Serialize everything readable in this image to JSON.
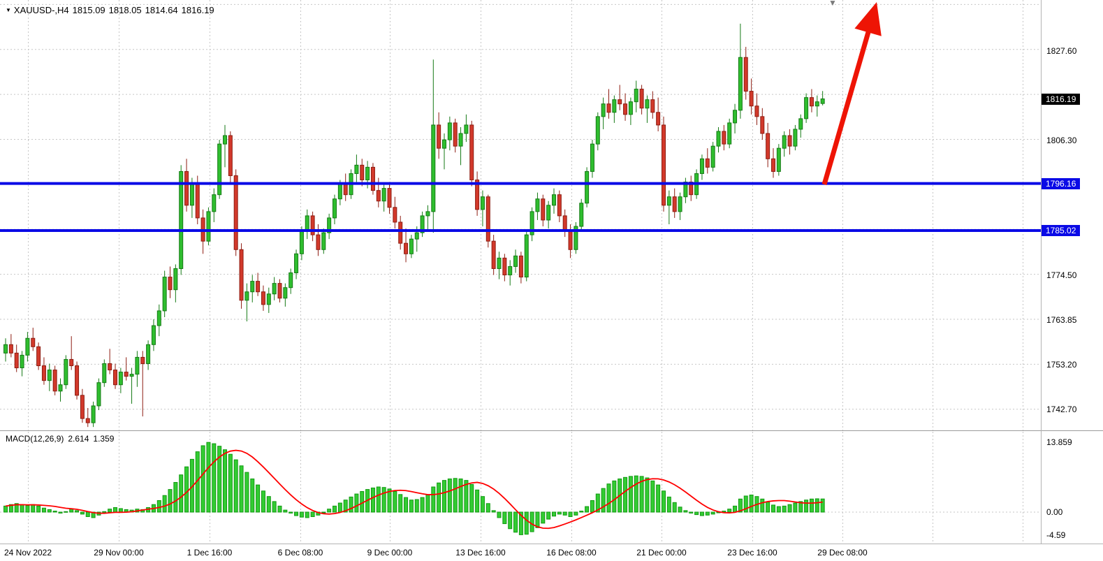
{
  "header": {
    "symbol_period": "XAUUSD-,H4",
    "open": "1815.09",
    "high": "1818.05",
    "low": "1814.64",
    "close": "1816.19"
  },
  "icons": {
    "symbol_dropdown": "▼",
    "shift_marker": "▼"
  },
  "indicator_panel": {
    "label": "MACD(12,26,9)",
    "macd_value": "2.614",
    "signal_value": "1.359",
    "axis_labels": [
      {
        "text": "13.859",
        "value": 13.859
      },
      {
        "text": "0.00",
        "value": 0
      },
      {
        "text": "-4.59",
        "value": -4.59
      }
    ]
  },
  "price_axis": {
    "ticks": [
      {
        "text": "1827.60",
        "value": 1827.6
      },
      {
        "text": "1806.30",
        "value": 1806.3
      },
      {
        "text": "1774.50",
        "value": 1774.5
      },
      {
        "text": "1763.85",
        "value": 1763.85
      },
      {
        "text": "1753.20",
        "value": 1753.2
      },
      {
        "text": "1742.70",
        "value": 1742.7
      }
    ],
    "current_price_badge": {
      "text": "1816.19",
      "value": 1816.19
    },
    "level_badges": [
      {
        "text": "1796.16",
        "value": 1796.16
      },
      {
        "text": "1785.02",
        "value": 1785.02
      }
    ]
  },
  "colors": {
    "bull": "#2fbe2f",
    "bull_stroke": "#157a15",
    "bear": "#d2392b",
    "bear_stroke": "#8e1d12",
    "hist": "#33cc33",
    "hist_stroke": "#119911",
    "signal": "#ff0000",
    "level": "#0a0ae6",
    "arrow": "#ee1405",
    "grid": "#c6c6c6",
    "separator": "#9a9a9a",
    "badge_current_bg": "#000000",
    "badge_level_bg": "#0a0ae6",
    "badge_text": "#ffffff",
    "axis_text": "#000000"
  },
  "chart_data": {
    "type": "candlestick",
    "symbol": "XAUUSD-",
    "timeframe": "H4",
    "title": "XAUUSD-,H4 1815.09 1818.05 1814.64 1816.19",
    "x_tick_labels": [
      "24 Nov 2022",
      "29 Nov 00:00",
      "1 Dec 16:00",
      "6 Dec 08:00",
      "9 Dec 00:00",
      "13 Dec 16:00",
      "16 Dec 08:00",
      "21 Dec 00:00",
      "23 Dec 16:00",
      "29 Dec 08:00"
    ],
    "price_axis_range": {
      "max": 1839.6,
      "min": 1737.7
    },
    "grid": {
      "base": 1742.7,
      "horizontal_step": 10.65
    },
    "current_price": 1816.19,
    "levels": [
      {
        "price": 1796.16,
        "label": "1796.16"
      },
      {
        "price": 1785.02,
        "label": "1785.02"
      }
    ],
    "annotations": [
      {
        "type": "arrow-up",
        "meaning": "bullish projection from 1796.16 support"
      }
    ],
    "candles": [
      [
        1756.0,
        1759.5,
        1754.0,
        1758.0
      ],
      [
        1758.0,
        1760.5,
        1755.0,
        1756.0
      ],
      [
        1756.0,
        1758.0,
        1751.5,
        1752.5
      ],
      [
        1752.5,
        1756.5,
        1750.5,
        1755.5
      ],
      [
        1755.5,
        1761.0,
        1754.0,
        1759.5
      ],
      [
        1759.5,
        1762.0,
        1756.5,
        1757.5
      ],
      [
        1757.5,
        1758.5,
        1752.0,
        1753.0
      ],
      [
        1753.0,
        1755.0,
        1748.5,
        1749.5
      ],
      [
        1749.5,
        1753.5,
        1747.0,
        1752.0
      ],
      [
        1752.0,
        1753.0,
        1746.0,
        1747.0
      ],
      [
        1747.0,
        1750.0,
        1744.5,
        1748.5
      ],
      [
        1748.5,
        1755.5,
        1747.5,
        1754.5
      ],
      [
        1754.5,
        1760.0,
        1752.0,
        1753.0
      ],
      [
        1753.0,
        1754.0,
        1745.0,
        1746.0
      ],
      [
        1746.0,
        1747.5,
        1739.5,
        1740.5
      ],
      [
        1740.5,
        1743.0,
        1738.5,
        1739.5
      ],
      [
        1739.5,
        1744.5,
        1738.5,
        1743.5
      ],
      [
        1743.5,
        1750.0,
        1742.5,
        1749.0
      ],
      [
        1749.0,
        1754.5,
        1748.0,
        1753.5
      ],
      [
        1753.5,
        1757.0,
        1751.0,
        1752.0
      ],
      [
        1752.0,
        1753.5,
        1747.5,
        1748.5
      ],
      [
        1748.5,
        1752.5,
        1746.5,
        1751.5
      ],
      [
        1751.5,
        1755.0,
        1749.5,
        1750.5
      ],
      [
        1750.5,
        1752.5,
        1744.0,
        1751.0
      ],
      [
        1751.0,
        1756.5,
        1748.0,
        1755.0
      ],
      [
        1755.0,
        1756.5,
        1741.0,
        1753.5
      ],
      [
        1753.5,
        1759.0,
        1752.0,
        1758.0
      ],
      [
        1758.0,
        1764.0,
        1756.5,
        1762.5
      ],
      [
        1762.5,
        1767.5,
        1760.0,
        1766.0
      ],
      [
        1766.0,
        1775.5,
        1764.5,
        1774.0
      ],
      [
        1774.0,
        1776.5,
        1769.0,
        1771.0
      ],
      [
        1771.0,
        1777.0,
        1768.0,
        1776.0
      ],
      [
        1776.0,
        1800.5,
        1774.5,
        1799.0
      ],
      [
        1799.0,
        1802.0,
        1789.5,
        1791.0
      ],
      [
        1791.0,
        1797.5,
        1788.0,
        1796.0
      ],
      [
        1796.0,
        1798.0,
        1786.5,
        1788.0
      ],
      [
        1788.0,
        1790.0,
        1779.5,
        1782.5
      ],
      [
        1782.5,
        1790.5,
        1781.5,
        1789.5
      ],
      [
        1789.5,
        1795.0,
        1787.0,
        1793.5
      ],
      [
        1793.5,
        1806.5,
        1792.5,
        1805.5
      ],
      [
        1805.5,
        1810.0,
        1800.0,
        1807.5
      ],
      [
        1807.5,
        1808.5,
        1796.0,
        1798.0
      ],
      [
        1798.0,
        1799.5,
        1779.0,
        1780.5
      ],
      [
        1780.5,
        1782.0,
        1766.5,
        1768.5
      ],
      [
        1768.5,
        1772.5,
        1763.5,
        1770.5
      ],
      [
        1770.5,
        1774.5,
        1768.0,
        1773.0
      ],
      [
        1773.0,
        1775.0,
        1769.5,
        1770.5
      ],
      [
        1770.5,
        1772.0,
        1766.0,
        1767.5
      ],
      [
        1767.5,
        1771.5,
        1765.5,
        1770.0
      ],
      [
        1770.0,
        1774.0,
        1768.5,
        1772.5
      ],
      [
        1772.5,
        1773.5,
        1768.0,
        1769.0
      ],
      [
        1769.0,
        1772.5,
        1767.0,
        1771.5
      ],
      [
        1771.5,
        1776.0,
        1770.0,
        1775.0
      ],
      [
        1775.0,
        1780.5,
        1773.5,
        1779.5
      ],
      [
        1779.5,
        1786.0,
        1778.0,
        1785.0
      ],
      [
        1785.0,
        1790.0,
        1783.0,
        1788.5
      ],
      [
        1788.5,
        1789.5,
        1782.5,
        1784.0
      ],
      [
        1784.0,
        1786.5,
        1779.0,
        1780.5
      ],
      [
        1780.5,
        1785.5,
        1779.5,
        1784.5
      ],
      [
        1784.5,
        1789.0,
        1783.0,
        1788.0
      ],
      [
        1788.0,
        1793.5,
        1786.5,
        1792.5
      ],
      [
        1792.5,
        1797.0,
        1791.0,
        1796.0
      ],
      [
        1796.0,
        1798.5,
        1792.0,
        1793.5
      ],
      [
        1793.5,
        1799.5,
        1792.5,
        1798.5
      ],
      [
        1798.5,
        1803.0,
        1796.5,
        1800.5
      ],
      [
        1800.5,
        1802.0,
        1795.5,
        1797.0
      ],
      [
        1797.0,
        1801.5,
        1795.0,
        1800.0
      ],
      [
        1800.0,
        1801.0,
        1793.5,
        1794.5
      ],
      [
        1794.5,
        1797.5,
        1790.5,
        1792.0
      ],
      [
        1792.0,
        1796.0,
        1789.5,
        1795.0
      ],
      [
        1795.0,
        1796.5,
        1789.0,
        1790.5
      ],
      [
        1790.5,
        1793.0,
        1785.5,
        1787.0
      ],
      [
        1787.0,
        1788.5,
        1780.5,
        1782.0
      ],
      [
        1782.0,
        1785.5,
        1777.5,
        1779.5
      ],
      [
        1779.5,
        1784.0,
        1778.5,
        1783.0
      ],
      [
        1783.0,
        1786.0,
        1780.0,
        1784.5
      ],
      [
        1784.5,
        1789.5,
        1783.5,
        1788.5
      ],
      [
        1788.5,
        1791.0,
        1785.0,
        1789.5
      ],
      [
        1789.5,
        1825.5,
        1784.5,
        1810.0
      ],
      [
        1810.0,
        1813.0,
        1802.0,
        1804.5
      ],
      [
        1804.5,
        1808.0,
        1799.5,
        1806.5
      ],
      [
        1806.5,
        1812.0,
        1804.0,
        1810.5
      ],
      [
        1810.5,
        1811.5,
        1803.5,
        1805.0
      ],
      [
        1805.0,
        1809.5,
        1800.5,
        1808.0
      ],
      [
        1808.0,
        1812.5,
        1806.0,
        1810.0
      ],
      [
        1810.0,
        1811.0,
        1795.5,
        1797.0
      ],
      [
        1797.0,
        1799.0,
        1788.5,
        1790.0
      ],
      [
        1790.0,
        1794.5,
        1786.0,
        1793.0
      ],
      [
        1793.0,
        1793.5,
        1781.0,
        1782.5
      ],
      [
        1782.5,
        1784.0,
        1774.5,
        1776.0
      ],
      [
        1776.0,
        1780.0,
        1773.5,
        1778.5
      ],
      [
        1778.5,
        1779.5,
        1773.0,
        1774.5
      ],
      [
        1774.5,
        1778.0,
        1772.0,
        1776.5
      ],
      [
        1776.5,
        1780.5,
        1775.0,
        1779.0
      ],
      [
        1779.0,
        1780.0,
        1772.5,
        1774.0
      ],
      [
        1774.0,
        1785.0,
        1773.0,
        1784.0
      ],
      [
        1784.0,
        1790.5,
        1782.5,
        1789.5
      ],
      [
        1789.5,
        1794.0,
        1787.5,
        1792.5
      ],
      [
        1792.5,
        1793.5,
        1786.0,
        1787.5
      ],
      [
        1787.5,
        1792.0,
        1785.5,
        1791.0
      ],
      [
        1791.0,
        1795.0,
        1789.0,
        1793.5
      ],
      [
        1793.5,
        1794.5,
        1787.0,
        1788.5
      ],
      [
        1788.5,
        1790.0,
        1783.5,
        1785.0
      ],
      [
        1785.0,
        1786.5,
        1778.5,
        1780.5
      ],
      [
        1780.5,
        1787.0,
        1779.5,
        1786.0
      ],
      [
        1786.0,
        1792.5,
        1785.0,
        1791.5
      ],
      [
        1791.5,
        1800.0,
        1790.5,
        1799.0
      ],
      [
        1799.0,
        1806.5,
        1797.5,
        1805.5
      ],
      [
        1805.5,
        1813.0,
        1804.0,
        1812.0
      ],
      [
        1812.0,
        1816.5,
        1809.0,
        1815.0
      ],
      [
        1815.0,
        1818.5,
        1811.5,
        1813.0
      ],
      [
        1813.0,
        1817.0,
        1810.5,
        1816.0
      ],
      [
        1816.0,
        1819.5,
        1813.5,
        1815.0
      ],
      [
        1815.0,
        1817.5,
        1811.0,
        1812.5
      ],
      [
        1812.5,
        1816.5,
        1810.0,
        1815.5
      ],
      [
        1815.5,
        1820.5,
        1813.0,
        1818.5
      ],
      [
        1818.5,
        1819.5,
        1812.5,
        1814.0
      ],
      [
        1814.0,
        1817.0,
        1810.5,
        1816.0
      ],
      [
        1816.0,
        1818.0,
        1811.5,
        1813.0
      ],
      [
        1813.0,
        1816.5,
        1808.5,
        1810.0
      ],
      [
        1810.0,
        1812.0,
        1789.5,
        1791.0
      ],
      [
        1791.0,
        1794.5,
        1786.5,
        1793.0
      ],
      [
        1793.0,
        1795.0,
        1788.0,
        1789.5
      ],
      [
        1789.5,
        1794.0,
        1787.5,
        1793.0
      ],
      [
        1793.0,
        1797.5,
        1791.5,
        1796.5
      ],
      [
        1796.5,
        1798.0,
        1792.0,
        1793.5
      ],
      [
        1793.5,
        1799.5,
        1792.5,
        1798.5
      ],
      [
        1798.5,
        1803.0,
        1797.0,
        1802.0
      ],
      [
        1802.0,
        1804.5,
        1798.5,
        1800.0
      ],
      [
        1800.0,
        1806.0,
        1799.0,
        1805.0
      ],
      [
        1805.0,
        1809.5,
        1803.5,
        1808.5
      ],
      [
        1808.5,
        1810.0,
        1804.0,
        1805.5
      ],
      [
        1805.5,
        1811.5,
        1804.5,
        1810.5
      ],
      [
        1810.5,
        1815.0,
        1808.0,
        1813.5
      ],
      [
        1813.5,
        1834.0,
        1811.5,
        1826.0
      ],
      [
        1826.0,
        1828.5,
        1816.0,
        1818.0
      ],
      [
        1818.0,
        1821.0,
        1812.5,
        1814.5
      ],
      [
        1814.5,
        1817.5,
        1810.0,
        1812.0
      ],
      [
        1812.0,
        1814.0,
        1806.5,
        1808.0
      ],
      [
        1808.0,
        1810.5,
        1800.0,
        1802.0
      ],
      [
        1802.0,
        1804.5,
        1797.5,
        1799.0
      ],
      [
        1799.0,
        1805.5,
        1798.0,
        1804.5
      ],
      [
        1804.5,
        1808.5,
        1802.5,
        1807.5
      ],
      [
        1807.5,
        1809.0,
        1803.0,
        1805.0
      ],
      [
        1805.0,
        1810.0,
        1804.0,
        1809.0
      ],
      [
        1809.0,
        1812.5,
        1807.0,
        1811.5
      ],
      [
        1811.5,
        1817.5,
        1810.5,
        1816.5
      ],
      [
        1816.5,
        1818.5,
        1813.0,
        1814.5
      ],
      [
        1814.5,
        1817.0,
        1812.0,
        1815.5
      ],
      [
        1815.09,
        1818.05,
        1814.64,
        1816.19
      ]
    ],
    "indicator": {
      "name": "MACD",
      "params": "12,26,9",
      "macd_value": 2.614,
      "signal_value": 1.359,
      "range": {
        "max": 13.859,
        "min": -4.59
      },
      "signal_method": "sma9-of-histogram",
      "histogram": [
        1.2,
        1.5,
        1.7,
        1.5,
        1.3,
        1.5,
        1.2,
        0.8,
        0.5,
        0.2,
        -0.2,
        0.1,
        0.6,
        0.3,
        -0.4,
        -0.9,
        -1.1,
        -0.6,
        0.1,
        0.6,
        0.9,
        0.7,
        0.5,
        0.4,
        0.6,
        0.5,
        0.9,
        1.5,
        2.3,
        3.3,
        4.5,
        5.9,
        7.4,
        9.0,
        10.5,
        12.0,
        13.2,
        13.86,
        13.6,
        13.1,
        12.4,
        11.5,
        10.4,
        9.2,
        7.9,
        6.6,
        5.4,
        4.2,
        3.1,
        2.1,
        1.2,
        0.4,
        -0.2,
        -0.7,
        -1.0,
        -1.1,
        -0.9,
        -0.6,
        0.0,
        0.6,
        1.2,
        1.8,
        2.4,
        3.0,
        3.6,
        4.1,
        4.5,
        4.8,
        5.0,
        4.9,
        4.6,
        4.1,
        3.5,
        2.9,
        2.4,
        2.5,
        2.9,
        3.4,
        5.0,
        5.8,
        6.3,
        6.6,
        6.7,
        6.6,
        6.3,
        5.5,
        4.4,
        3.1,
        1.7,
        0.3,
        -1.1,
        -2.3,
        -3.3,
        -4.0,
        -4.5,
        -4.4,
        -3.9,
        -3.1,
        -2.2,
        -1.4,
        -0.8,
        -0.4,
        -0.6,
        -0.9,
        -0.6,
        0.2,
        1.1,
        2.3,
        3.6,
        4.7,
        5.6,
        6.2,
        6.6,
        6.9,
        7.1,
        7.2,
        7.1,
        6.8,
        6.2,
        5.4,
        4.2,
        3.0,
        1.9,
        1.0,
        0.3,
        -0.2,
        -0.5,
        -0.7,
        -0.6,
        -0.4,
        -0.1,
        0.2,
        0.6,
        1.2,
        2.6,
        3.2,
        3.4,
        3.1,
        2.6,
        2.0,
        1.4,
        1.1,
        1.2,
        1.5,
        1.8,
        2.1,
        2.4,
        2.6,
        2.65,
        2.614
      ]
    }
  }
}
